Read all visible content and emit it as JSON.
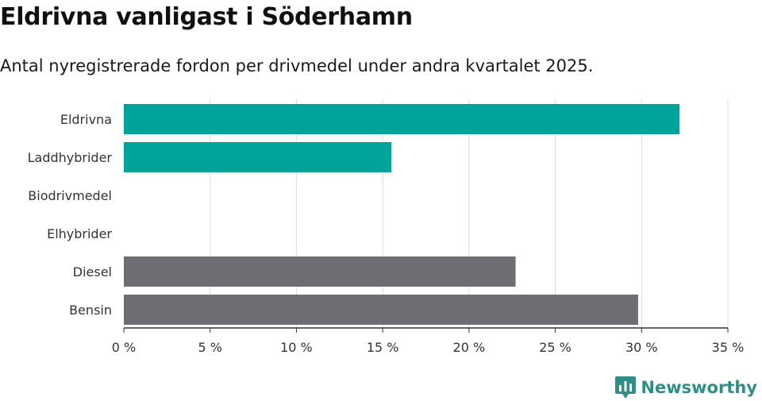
{
  "header": {
    "title": "Eldrivna vanligast i Söderhamn",
    "subtitle": "Antal nyregistrerade fordon per drivmedel under andra kvartalet 2025."
  },
  "brand": {
    "name": "Newsworthy",
    "icon": "newsworthy-logo-icon",
    "color": "#2f8f87"
  },
  "chart_data": {
    "type": "bar",
    "orientation": "horizontal",
    "categories": [
      "Eldrivna",
      "Laddhybrider",
      "Biodrivmedel",
      "Elhybrider",
      "Diesel",
      "Bensin"
    ],
    "values": [
      32.2,
      15.5,
      0,
      0,
      22.7,
      29.8
    ],
    "colors": [
      "#00a39a",
      "#00a39a",
      "#00a39a",
      "#00a39a",
      "#6e6d72",
      "#6e6d72"
    ],
    "xlim": [
      0,
      35
    ],
    "xticks": [
      0,
      5,
      10,
      15,
      20,
      25,
      30,
      35
    ],
    "xtick_labels": [
      "0 %",
      "5 %",
      "10 %",
      "15 %",
      "20 %",
      "25 %",
      "30 %",
      "35 %"
    ],
    "grid": true,
    "legend": "none"
  }
}
